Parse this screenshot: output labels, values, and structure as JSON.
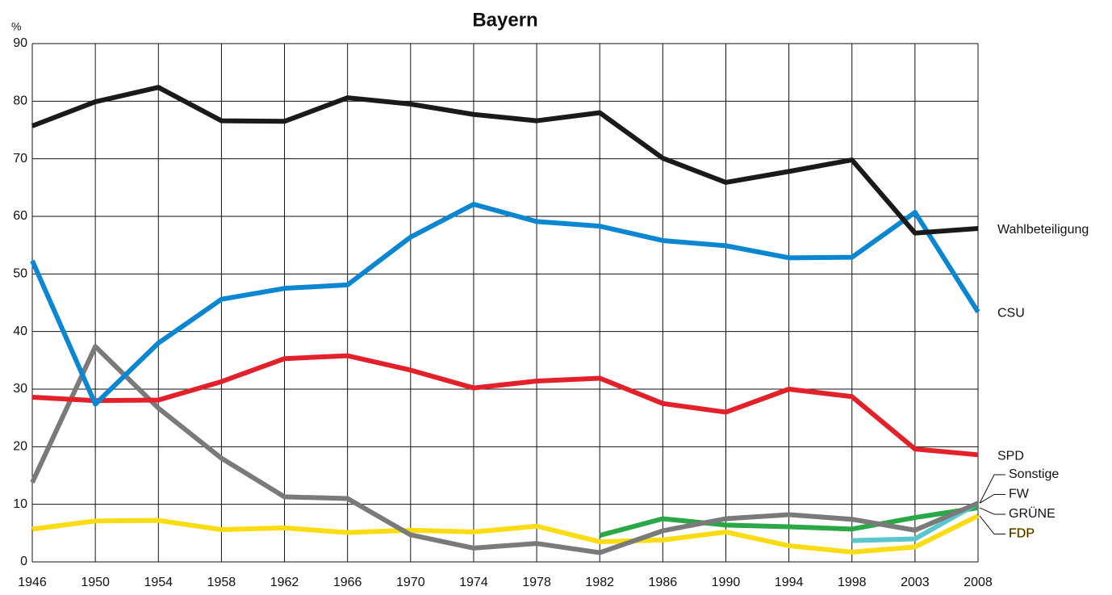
{
  "chart_data": {
    "type": "line",
    "title": "Bayern",
    "y_label": "%",
    "categories": [
      "1946",
      "1950",
      "1954",
      "1958",
      "1962",
      "1966",
      "1970",
      "1974",
      "1978",
      "1982",
      "1986",
      "1990",
      "1994",
      "1998",
      "2003",
      "2008"
    ],
    "ylim": [
      0,
      90
    ],
    "yticks": [
      0,
      10,
      20,
      30,
      40,
      50,
      60,
      70,
      80,
      90
    ],
    "grid": true,
    "series": [
      {
        "name": "Wahlbeteiligung",
        "color": "#1a1a1a",
        "values": [
          75.7,
          79.9,
          82.4,
          76.6,
          76.5,
          80.6,
          79.5,
          77.7,
          76.6,
          78.0,
          70.1,
          65.9,
          67.8,
          69.8,
          57.1,
          57.9
        ]
      },
      {
        "name": "CSU",
        "color": "#0a87d0",
        "values": [
          52.3,
          27.4,
          38.0,
          45.6,
          47.5,
          48.1,
          56.4,
          62.1,
          59.1,
          58.3,
          55.8,
          54.9,
          52.8,
          52.9,
          60.7,
          43.4
        ]
      },
      {
        "name": "SPD",
        "color": "#e3212b",
        "values": [
          28.6,
          28.0,
          28.1,
          31.3,
          35.3,
          35.8,
          33.3,
          30.2,
          31.4,
          31.9,
          27.5,
          26.0,
          30.0,
          28.7,
          19.6,
          18.6
        ]
      },
      {
        "name": "Sonstige",
        "color": "#7a7a7a",
        "values": [
          13.8,
          37.4,
          26.7,
          18.0,
          11.3,
          11.0,
          4.7,
          2.4,
          3.2,
          1.6,
          5.4,
          7.5,
          8.2,
          7.4,
          5.5,
          10.2
        ]
      },
      {
        "name": "FW",
        "color": "#5bc6cc",
        "values": [
          null,
          null,
          null,
          null,
          null,
          null,
          null,
          null,
          null,
          null,
          null,
          null,
          null,
          3.7,
          4.0,
          10.2
        ]
      },
      {
        "name": "GRÜNE",
        "color": "#2aa845",
        "values": [
          null,
          null,
          null,
          null,
          null,
          null,
          null,
          null,
          null,
          4.6,
          7.5,
          6.4,
          6.1,
          5.7,
          7.7,
          9.4
        ]
      },
      {
        "name": "FDP",
        "color": "#f9dc13",
        "values": [
          5.7,
          7.1,
          7.2,
          5.6,
          5.9,
          5.1,
          5.5,
          5.2,
          6.2,
          3.5,
          3.8,
          5.2,
          2.8,
          1.7,
          2.6,
          8.0
        ]
      }
    ]
  }
}
